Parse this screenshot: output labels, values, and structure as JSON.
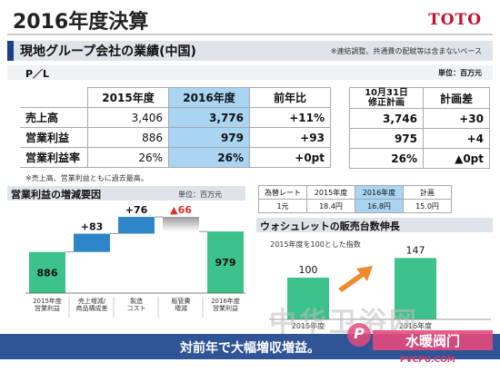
{
  "header": {
    "title": "2016年度決算",
    "logo": "TOTO"
  },
  "section": {
    "title": "現地グループ会社の業績(中国)",
    "note": "※連結調整、共通費の配賦等は含まないベース"
  },
  "pl": {
    "label": "P／L",
    "unit": "単位：百万元",
    "headers": [
      "2015年度",
      "2016年度",
      "前年比"
    ],
    "plan_headers": [
      "10月31日\n修正計画",
      "計画差"
    ],
    "rows": [
      {
        "label": "売上高",
        "v2015": "3,406",
        "v2016": "3,776",
        "yoy": "+11%",
        "plan": "3,746",
        "diff": "+30"
      },
      {
        "label": "営業利益",
        "v2015": "886",
        "v2016": "979",
        "yoy": "+93",
        "plan": "975",
        "diff": "+4"
      },
      {
        "label": "営業利益率",
        "v2015": "26%",
        "v2016": "26%",
        "yoy": "+0pt",
        "plan": "26%",
        "diff": "▲0pt"
      }
    ],
    "footnote": "※売上高、営業利益ともに過去最高。"
  },
  "waterfall": {
    "title": "営業利益の増減要因",
    "unit": "単位：百万元",
    "colors": {
      "total": "#3cc28a",
      "increase": "#2e86c8",
      "decrease": "#d9d9d9",
      "neg_label": "#e0302a"
    },
    "chart_data": {
      "type": "bar",
      "categories": [
        "2015年度\n営業利益",
        "売上増減/\n商品構成差",
        "製造\nコスト",
        "販管費\n増減",
        "2016年度\n営業利益"
      ],
      "values": [
        886,
        83,
        76,
        -66,
        979
      ],
      "labels": [
        "886",
        "+83",
        "+76",
        "▲66",
        "979"
      ],
      "title": "営業利益の増減要因",
      "xlabel": "",
      "ylabel": ""
    }
  },
  "fx": {
    "headers": [
      "為替レート",
      "2015年度",
      "2016年度",
      "計画"
    ],
    "values": [
      "1元",
      "18.4円",
      "16.8円",
      "15.0円"
    ]
  },
  "washlet": {
    "title": "ウォシュレットの販売台数伸長",
    "note": "2015年度を100とした指数",
    "colors": {
      "bar": "#3cc28a",
      "arrow": "#ee8a2e"
    },
    "chart_data": {
      "type": "bar",
      "categories": [
        "2015年度",
        "2016年度"
      ],
      "values": [
        100,
        147
      ],
      "title": "ウォシュレットの販売台数伸長",
      "xlabel": "",
      "ylabel": ""
    }
  },
  "banner": {
    "text": "対前年で大幅増収増益。"
  },
  "watermark": {
    "main": "中华卫浴网",
    "sub": "水暖阀门",
    "url": "PVCPU.COM",
    "mark": "P"
  }
}
